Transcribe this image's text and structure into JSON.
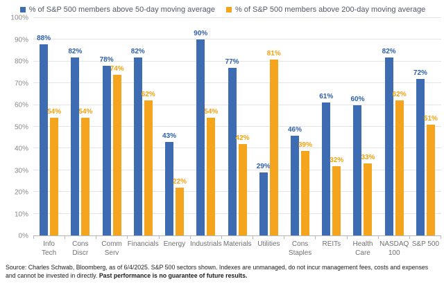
{
  "legend": {
    "items": [
      {
        "label": "% of S&P 500 members above 50-day moving average",
        "color": "#3d6cb2"
      },
      {
        "label": "% of S&P 500 members above 200-day moving average",
        "color": "#f5a51d"
      }
    ]
  },
  "chart_data": {
    "type": "bar",
    "title": "",
    "categories": [
      "Info Tech",
      "Cons Discr",
      "Comm Serv",
      "Financials",
      "Energy",
      "Industrials",
      "Materials",
      "Utilities",
      "Cons Staples",
      "REITs",
      "Health Care",
      "NASDAQ 100",
      "S&P 500"
    ],
    "x_label_lines": [
      [
        "Info",
        "Tech"
      ],
      [
        "Cons",
        "Discr"
      ],
      [
        "Comm",
        "Serv"
      ],
      [
        "Financials"
      ],
      [
        "Energy"
      ],
      [
        "Industrials"
      ],
      [
        "Materials"
      ],
      [
        "Utilities"
      ],
      [
        "Cons",
        "Staples"
      ],
      [
        "REITs"
      ],
      [
        "Health",
        "Care"
      ],
      [
        "NASDAQ",
        "100"
      ],
      [
        "S&P 500"
      ]
    ],
    "series": [
      {
        "name": "% of S&P 500 members above 50-day moving average",
        "color": "#3d6cb2",
        "label_color": "#2d5fa6",
        "values": [
          88,
          82,
          78,
          82,
          43,
          90,
          77,
          29,
          46,
          61,
          60,
          82,
          72
        ]
      },
      {
        "name": "% of S&P 500 members above 200-day moving average",
        "color": "#f5a51d",
        "label_color": "#f2a20d",
        "values": [
          54,
          54,
          74,
          62,
          22,
          54,
          42,
          81,
          39,
          32,
          33,
          62,
          51
        ]
      }
    ],
    "xlabel": "",
    "ylabel": "",
    "ylim": [
      0,
      100
    ],
    "ytick_step": 10,
    "ytick_suffix": "%",
    "grid": true,
    "legend_position": "top",
    "value_labels": true
  },
  "footer": {
    "source_text": "Source: Charles Schwab, Bloomberg, as of 6/4/2025. S&P 500 sectors shown. Indexes are unmanaged, do not incur management fees, costs and expenses and cannot be invested in directly. ",
    "disclaimer_bold": "Past performance is no guarantee of future results."
  }
}
